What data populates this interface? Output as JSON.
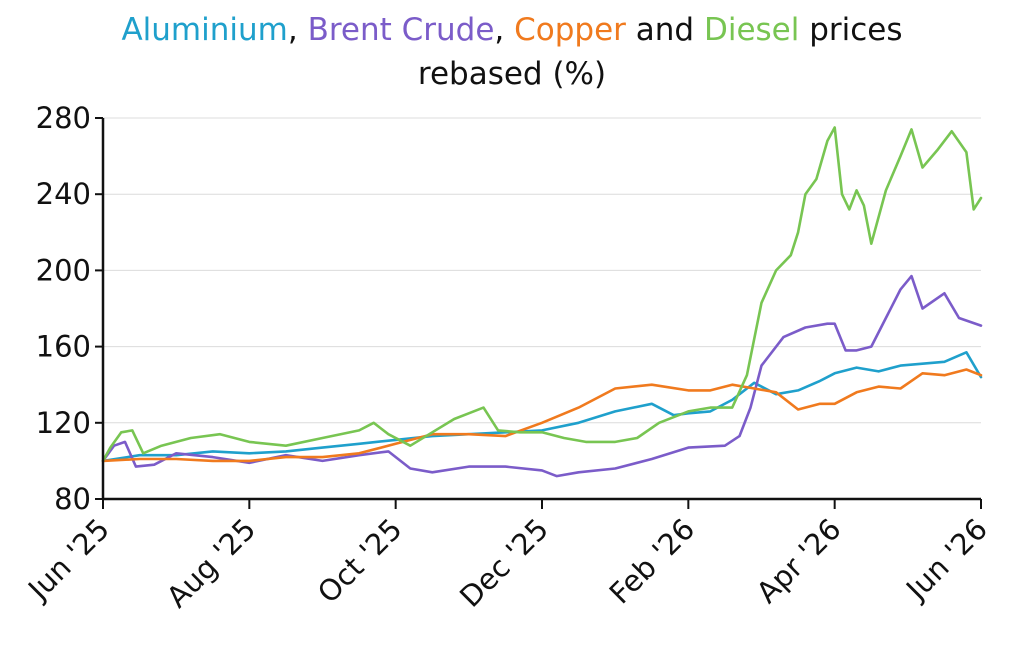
{
  "chart_data": {
    "type": "line",
    "title_parts": [
      {
        "text": "Aluminium",
        "color": "#1FA0CC"
      },
      {
        "text": ", ",
        "color": "#111111"
      },
      {
        "text": "Brent Crude",
        "color": "#7B5CC9"
      },
      {
        "text": ", ",
        "color": "#111111"
      },
      {
        "text": "Copper",
        "color": "#F07A1E"
      },
      {
        "text": " and ",
        "color": "#111111"
      },
      {
        "text": "Diesel",
        "color": "#78C552"
      },
      {
        "text": " prices",
        "color": "#111111"
      }
    ],
    "subtitle": "rebased (%)",
    "xlabel": "",
    "ylabel": "",
    "ylim": [
      80,
      280
    ],
    "yticks": [
      80,
      120,
      160,
      200,
      240,
      280
    ],
    "xlim": [
      0,
      12
    ],
    "xticks": [
      {
        "x": 0,
        "label": "Jun '25"
      },
      {
        "x": 2,
        "label": "Aug '25"
      },
      {
        "x": 4,
        "label": "Oct '25"
      },
      {
        "x": 6,
        "label": "Dec '25"
      },
      {
        "x": 8,
        "label": "Feb '26"
      },
      {
        "x": 10,
        "label": "Apr '26"
      },
      {
        "x": 12,
        "label": "Jun '26"
      }
    ],
    "grid": true,
    "series": [
      {
        "name": "Aluminium",
        "color": "#1FA0CC",
        "points": [
          [
            0,
            100
          ],
          [
            0.5,
            103
          ],
          [
            1,
            103
          ],
          [
            1.5,
            105
          ],
          [
            2,
            104
          ],
          [
            2.5,
            105
          ],
          [
            3,
            107
          ],
          [
            3.5,
            109
          ],
          [
            4,
            111
          ],
          [
            4.5,
            113
          ],
          [
            5,
            114
          ],
          [
            5.5,
            115
          ],
          [
            6,
            116
          ],
          [
            6.5,
            120
          ],
          [
            7,
            126
          ],
          [
            7.5,
            130
          ],
          [
            7.8,
            124
          ],
          [
            8,
            125
          ],
          [
            8.3,
            126
          ],
          [
            8.6,
            132
          ],
          [
            8.9,
            141
          ],
          [
            9.2,
            135
          ],
          [
            9.5,
            137
          ],
          [
            9.8,
            142
          ],
          [
            10,
            146
          ],
          [
            10.3,
            149
          ],
          [
            10.6,
            147
          ],
          [
            10.9,
            150
          ],
          [
            11.2,
            151
          ],
          [
            11.5,
            152
          ],
          [
            11.8,
            157
          ],
          [
            12,
            144
          ]
        ]
      },
      {
        "name": "Brent Crude",
        "color": "#7B5CC9",
        "points": [
          [
            0,
            100
          ],
          [
            0.15,
            108
          ],
          [
            0.3,
            110
          ],
          [
            0.45,
            97
          ],
          [
            0.7,
            98
          ],
          [
            1,
            104
          ],
          [
            1.5,
            102
          ],
          [
            2,
            99
          ],
          [
            2.5,
            103
          ],
          [
            3,
            100
          ],
          [
            3.5,
            103
          ],
          [
            3.9,
            105
          ],
          [
            4.2,
            96
          ],
          [
            4.5,
            94
          ],
          [
            5,
            97
          ],
          [
            5.5,
            97
          ],
          [
            6,
            95
          ],
          [
            6.2,
            92
          ],
          [
            6.5,
            94
          ],
          [
            7,
            96
          ],
          [
            7.5,
            101
          ],
          [
            8,
            107
          ],
          [
            8.5,
            108
          ],
          [
            8.7,
            113
          ],
          [
            8.85,
            128
          ],
          [
            9,
            150
          ],
          [
            9.3,
            165
          ],
          [
            9.6,
            170
          ],
          [
            9.9,
            172
          ],
          [
            10,
            172
          ],
          [
            10.15,
            158
          ],
          [
            10.3,
            158
          ],
          [
            10.5,
            160
          ],
          [
            10.7,
            175
          ],
          [
            10.9,
            190
          ],
          [
            11.05,
            197
          ],
          [
            11.2,
            180
          ],
          [
            11.5,
            188
          ],
          [
            11.7,
            175
          ],
          [
            12,
            171
          ]
        ]
      },
      {
        "name": "Copper",
        "color": "#F07A1E",
        "points": [
          [
            0,
            100
          ],
          [
            0.5,
            101
          ],
          [
            1,
            101
          ],
          [
            1.5,
            100
          ],
          [
            2,
            100
          ],
          [
            2.5,
            102
          ],
          [
            3,
            102
          ],
          [
            3.5,
            104
          ],
          [
            4,
            109
          ],
          [
            4.5,
            114
          ],
          [
            5,
            114
          ],
          [
            5.5,
            113
          ],
          [
            6,
            120
          ],
          [
            6.5,
            128
          ],
          [
            7,
            138
          ],
          [
            7.5,
            140
          ],
          [
            8,
            137
          ],
          [
            8.3,
            137
          ],
          [
            8.6,
            140
          ],
          [
            8.9,
            138
          ],
          [
            9.2,
            136
          ],
          [
            9.5,
            127
          ],
          [
            9.8,
            130
          ],
          [
            10,
            130
          ],
          [
            10.3,
            136
          ],
          [
            10.6,
            139
          ],
          [
            10.9,
            138
          ],
          [
            11.2,
            146
          ],
          [
            11.5,
            145
          ],
          [
            11.8,
            148
          ],
          [
            12,
            145
          ]
        ]
      },
      {
        "name": "Diesel",
        "color": "#78C552",
        "points": [
          [
            0,
            100
          ],
          [
            0.1,
            107
          ],
          [
            0.25,
            115
          ],
          [
            0.4,
            116
          ],
          [
            0.55,
            104
          ],
          [
            0.8,
            108
          ],
          [
            1.2,
            112
          ],
          [
            1.6,
            114
          ],
          [
            2,
            110
          ],
          [
            2.5,
            108
          ],
          [
            3,
            112
          ],
          [
            3.5,
            116
          ],
          [
            3.7,
            120
          ],
          [
            3.9,
            114
          ],
          [
            4.2,
            108
          ],
          [
            4.5,
            115
          ],
          [
            4.8,
            122
          ],
          [
            5,
            125
          ],
          [
            5.2,
            128
          ],
          [
            5.4,
            116
          ],
          [
            5.7,
            115
          ],
          [
            6,
            115
          ],
          [
            6.3,
            112
          ],
          [
            6.6,
            110
          ],
          [
            7,
            110
          ],
          [
            7.3,
            112
          ],
          [
            7.6,
            120
          ],
          [
            8,
            126
          ],
          [
            8.3,
            128
          ],
          [
            8.6,
            128
          ],
          [
            8.8,
            145
          ],
          [
            9,
            183
          ],
          [
            9.2,
            200
          ],
          [
            9.4,
            208
          ],
          [
            9.5,
            220
          ],
          [
            9.6,
            240
          ],
          [
            9.75,
            248
          ],
          [
            9.9,
            268
          ],
          [
            10,
            275
          ],
          [
            10.1,
            240
          ],
          [
            10.2,
            232
          ],
          [
            10.3,
            242
          ],
          [
            10.4,
            234
          ],
          [
            10.5,
            214
          ],
          [
            10.7,
            242
          ],
          [
            10.9,
            260
          ],
          [
            11.05,
            274
          ],
          [
            11.2,
            254
          ],
          [
            11.4,
            263
          ],
          [
            11.6,
            273
          ],
          [
            11.8,
            262
          ],
          [
            11.9,
            232
          ],
          [
            12,
            238
          ]
        ]
      }
    ]
  }
}
